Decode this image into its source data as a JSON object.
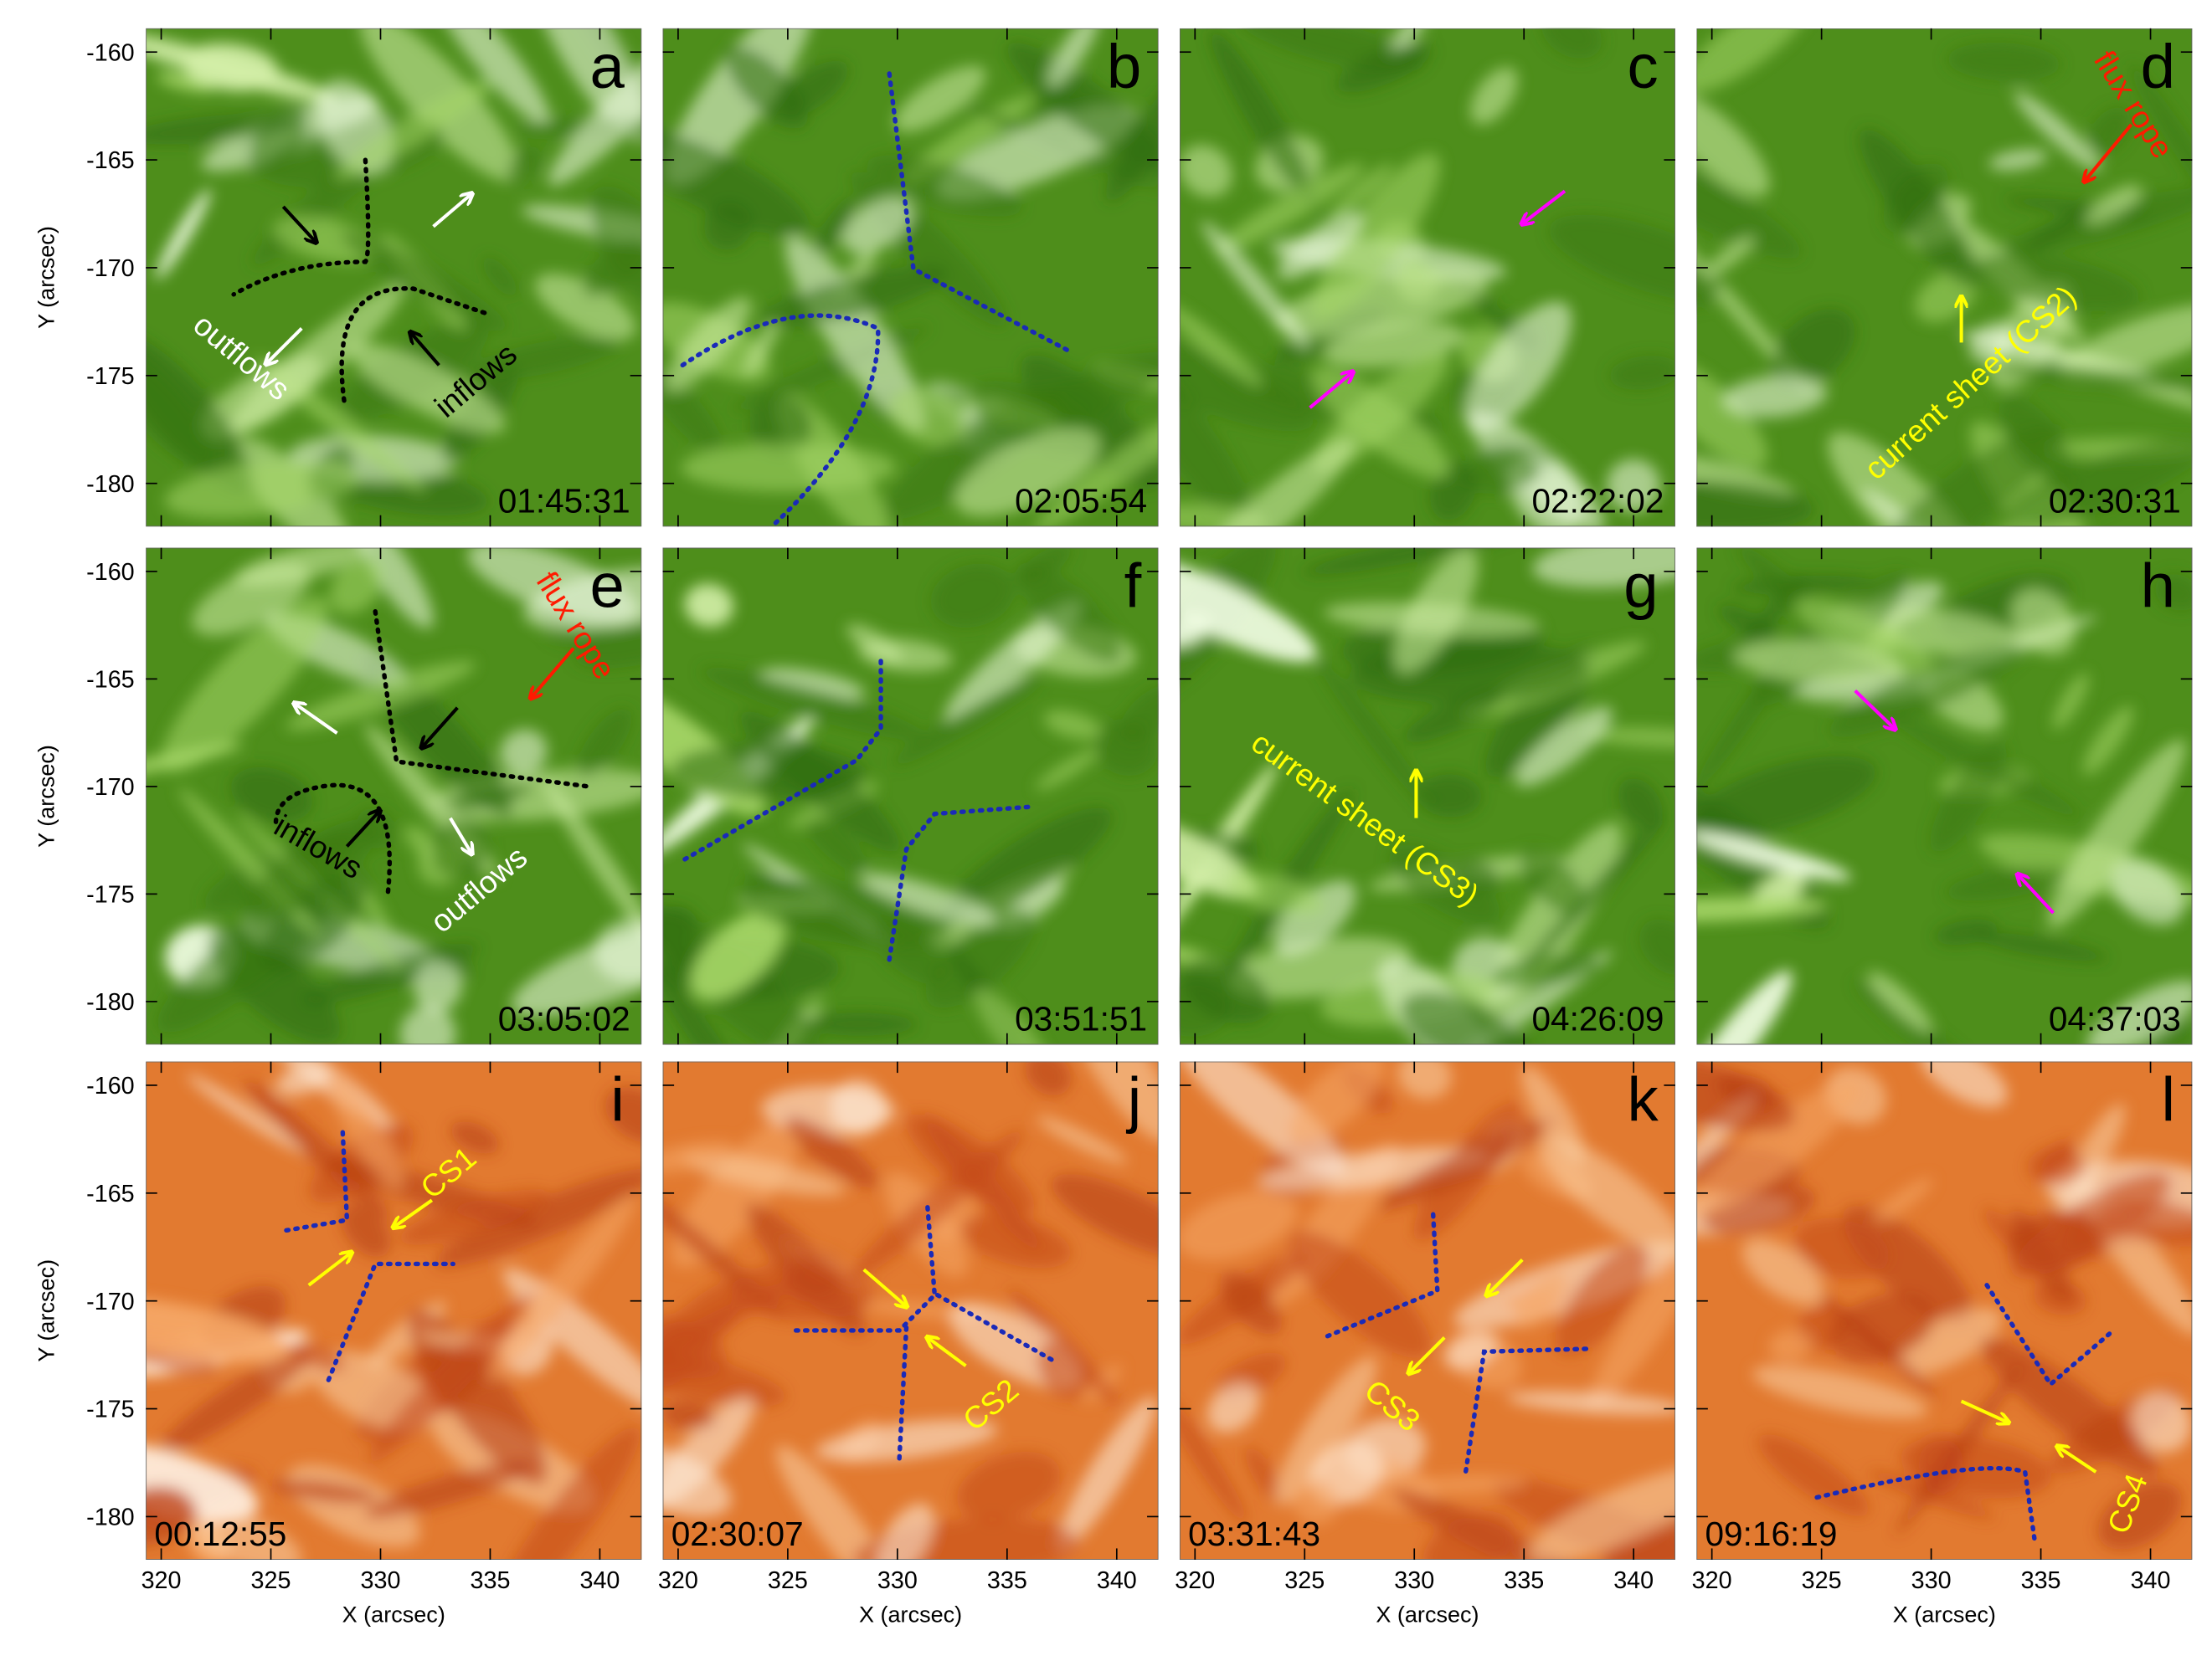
{
  "y_axis": {
    "label": "Y (arcsec)",
    "lim": [
      -182,
      -158.9
    ],
    "ticks": [
      -160,
      -165,
      -170,
      -175,
      -180
    ]
  },
  "x_axis": {
    "label": "X (arcsec)",
    "lim": [
      319.3,
      341.9
    ],
    "ticks": [
      320,
      325,
      330,
      335,
      340
    ]
  },
  "panels": [
    {
      "letter": "a",
      "time": "01:45:31",
      "labels": [
        "outflows",
        "inflows"
      ]
    },
    {
      "letter": "b",
      "time": "02:05:54"
    },
    {
      "letter": "c",
      "time": "02:22:02"
    },
    {
      "letter": "d",
      "time": "02:30:31",
      "labels": [
        "flux rope",
        "current sheet (CS2)"
      ]
    },
    {
      "letter": "e",
      "time": "03:05:02",
      "labels": [
        "flux rope",
        "inflows",
        "outflows"
      ]
    },
    {
      "letter": "f",
      "time": "03:51:51"
    },
    {
      "letter": "g",
      "time": "04:26:09",
      "labels": [
        "current sheet (CS3)"
      ]
    },
    {
      "letter": "h",
      "time": "04:37:03"
    },
    {
      "letter": "i",
      "time": "00:12:55",
      "labels": [
        "CS1"
      ]
    },
    {
      "letter": "j",
      "time": "02:30:07",
      "labels": [
        "CS2"
      ]
    },
    {
      "letter": "k",
      "time": "03:31:43",
      "labels": [
        "CS3"
      ]
    },
    {
      "letter": "l",
      "time": "09:16:19",
      "labels": [
        "CS4"
      ]
    }
  ]
}
